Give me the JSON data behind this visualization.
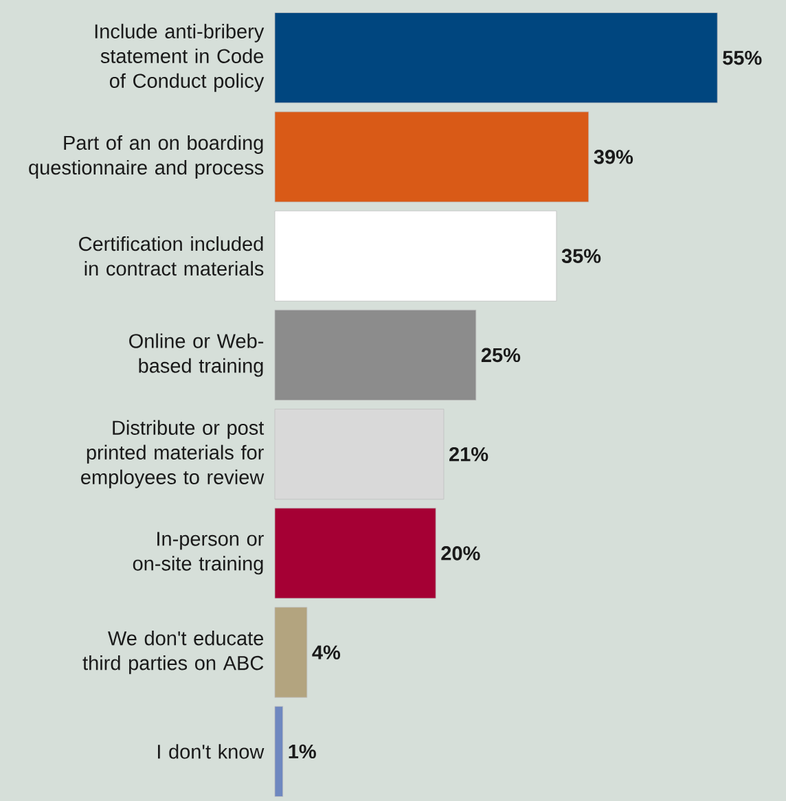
{
  "chart_data": {
    "type": "bar",
    "orientation": "horizontal",
    "categories": [
      "Include anti-bribery statement in Code of Conduct policy",
      "Part of an on boarding questionnaire and process",
      "Certification included in contract materials",
      "Online or Web-based training",
      "Distribute or post printed materials for employees to review",
      "In-person or on-site training",
      "We don't educate third parties on ABC",
      "I don't know"
    ],
    "values": [
      55,
      39,
      35,
      25,
      21,
      20,
      4,
      1
    ],
    "value_labels": [
      "55%",
      "39%",
      "35%",
      "25%",
      "21%",
      "20%",
      "4%",
      "1%"
    ],
    "colors": [
      "#00467f",
      "#d95a17",
      "#ffffff",
      "#8c8c8c",
      "#d9d9d9",
      "#a50034",
      "#b3a47f",
      "#6f88c0"
    ]
  }
}
